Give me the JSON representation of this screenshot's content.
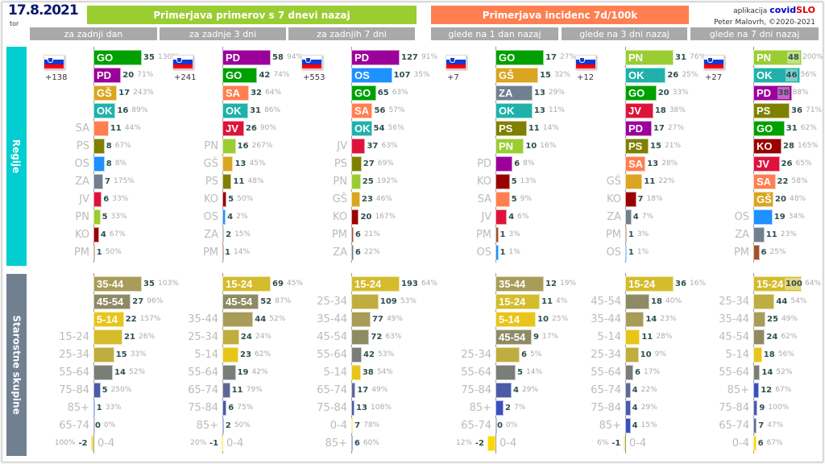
{
  "header": {
    "date": "17.8.2021",
    "weekday": "tor",
    "banner_cases": "Primerjava primerov s 7 dnevi nazaj",
    "banner_incidence": "Primerjava incidenc 7d/100k",
    "sub_cases": [
      "za zadnji dan",
      "za zadnje 3 dni",
      "za zadnjih 7 dni"
    ],
    "sub_incidence": [
      "glede na 1 dan nazaj",
      "glede na 3 dni nazaj",
      "glede na 7 dni nazaj"
    ],
    "credit_prefix": "aplikacija",
    "brand_a": "covid",
    "brand_b": "SLO",
    "author": "Peter Malovrh, ©2020-2021"
  },
  "sections": {
    "regions": "Regije",
    "ages": "Starostne skupine"
  },
  "colors": {
    "banner_cases": "#9acd32",
    "banner_incidence": "#ff7f50",
    "regions_side": "#00ced1",
    "ages_side": "#708090",
    "GO": "#00a000",
    "PD": "#9b009b",
    "GŠ": "#daa520",
    "OK": "#20b2aa",
    "SA": "#ff7f50",
    "PS": "#808000",
    "OS": "#1e90ff",
    "ZA": "#708090",
    "JV": "#dc143c",
    "PN": "#9acd32",
    "KO": "#990000",
    "PM": "#a0522d",
    "0-4": "#ffd700",
    "5-14": "#e8c51a",
    "15-24": "#d4bc2c",
    "25-34": "#bfad40",
    "35-44": "#a89c58",
    "45-54": "#8e8a64",
    "55-64": "#7a7d78",
    "65-74": "#5f6895",
    "75-84": "#4b5aa8",
    "85+": "#3a50c0"
  },
  "chart_data": [
    {
      "type": "bar",
      "section": "Regije",
      "group": "za zadnji dan",
      "flag_delta": "+138",
      "items": [
        {
          "label": "GO",
          "value": 35,
          "pct": "130%"
        },
        {
          "label": "PD",
          "value": 20,
          "pct": "71%"
        },
        {
          "label": "GŠ",
          "value": 17,
          "pct": "243%"
        },
        {
          "label": "OK",
          "value": 16,
          "pct": "89%"
        },
        {
          "label": "SA",
          "value": 11,
          "pct": "44%"
        },
        {
          "label": "PS",
          "value": 8,
          "pct": "67%"
        },
        {
          "label": "OS",
          "value": 8,
          "pct": "8%"
        },
        {
          "label": "ZA",
          "value": 7,
          "pct": "175%"
        },
        {
          "label": "JV",
          "value": 6,
          "pct": "33%"
        },
        {
          "label": "PN",
          "value": 5,
          "pct": "33%"
        },
        {
          "label": "KO",
          "value": 4,
          "pct": "67%"
        },
        {
          "label": "PM",
          "value": 1,
          "pct": "50%"
        }
      ]
    },
    {
      "type": "bar",
      "section": "Regije",
      "group": "za zadnje 3 dni",
      "flag_delta": "+241",
      "items": [
        {
          "label": "PD",
          "value": 58,
          "pct": "94%"
        },
        {
          "label": "GO",
          "value": 42,
          "pct": "74%"
        },
        {
          "label": "SA",
          "value": 32,
          "pct": "64%"
        },
        {
          "label": "OK",
          "value": 31,
          "pct": "86%"
        },
        {
          "label": "JV",
          "value": 26,
          "pct": "90%"
        },
        {
          "label": "PN",
          "value": 16,
          "pct": "267%"
        },
        {
          "label": "GŠ",
          "value": 13,
          "pct": "45%"
        },
        {
          "label": "PS",
          "value": 11,
          "pct": "48%"
        },
        {
          "label": "KO",
          "value": 5,
          "pct": "50%"
        },
        {
          "label": "OS",
          "value": 4,
          "pct": "2%"
        },
        {
          "label": "ZA",
          "value": 2,
          "pct": "15%"
        },
        {
          "label": "PM",
          "value": 1,
          "pct": "14%"
        }
      ]
    },
    {
      "type": "bar",
      "section": "Regije",
      "group": "za zadnjih 7 dni",
      "flag_delta": "+553",
      "items": [
        {
          "label": "PD",
          "value": 127,
          "pct": "91%"
        },
        {
          "label": "OS",
          "value": 107,
          "pct": "35%"
        },
        {
          "label": "GO",
          "value": 65,
          "pct": "63%"
        },
        {
          "label": "SA",
          "value": 56,
          "pct": "57%"
        },
        {
          "label": "OK",
          "value": 54,
          "pct": "56%"
        },
        {
          "label": "JV",
          "value": 37,
          "pct": "63%"
        },
        {
          "label": "PS",
          "value": 27,
          "pct": "69%"
        },
        {
          "label": "PN",
          "value": 25,
          "pct": "192%"
        },
        {
          "label": "GŠ",
          "value": 23,
          "pct": "46%"
        },
        {
          "label": "KO",
          "value": 20,
          "pct": "167%"
        },
        {
          "label": "PM",
          "value": 6,
          "pct": "21%"
        },
        {
          "label": "ZA",
          "value": 6,
          "pct": "22%"
        }
      ]
    },
    {
      "type": "bar",
      "section": "Regije",
      "group": "glede na 1 dan nazaj",
      "flag_delta": "+7",
      "items": [
        {
          "label": "GO",
          "value": 17,
          "pct": "27%"
        },
        {
          "label": "GŠ",
          "value": 15,
          "pct": "32%"
        },
        {
          "label": "ZA",
          "value": 13,
          "pct": "29%"
        },
        {
          "label": "OK",
          "value": 13,
          "pct": "11%"
        },
        {
          "label": "PS",
          "value": 11,
          "pct": "14%"
        },
        {
          "label": "PN",
          "value": 10,
          "pct": "16%"
        },
        {
          "label": "PD",
          "value": 6,
          "pct": "8%"
        },
        {
          "label": "KO",
          "value": 5,
          "pct": "13%"
        },
        {
          "label": "SA",
          "value": 5,
          "pct": "9%"
        },
        {
          "label": "JV",
          "value": 4,
          "pct": "6%"
        },
        {
          "label": "PM",
          "value": 1,
          "pct": "3%"
        },
        {
          "label": "OS",
          "value": 1,
          "pct": "1%"
        }
      ]
    },
    {
      "type": "bar",
      "section": "Regije",
      "group": "glede na 3 dni nazaj",
      "flag_delta": "+12",
      "items": [
        {
          "label": "PN",
          "value": 31,
          "pct": "76%"
        },
        {
          "label": "OK",
          "value": 26,
          "pct": "25%"
        },
        {
          "label": "GO",
          "value": 20,
          "pct": "33%"
        },
        {
          "label": "JV",
          "value": 18,
          "pct": "38%"
        },
        {
          "label": "PD",
          "value": 17,
          "pct": "27%"
        },
        {
          "label": "PS",
          "value": 15,
          "pct": "21%"
        },
        {
          "label": "SA",
          "value": 13,
          "pct": "28%"
        },
        {
          "label": "GŠ",
          "value": 11,
          "pct": "22%"
        },
        {
          "label": "KO",
          "value": 7,
          "pct": "18%"
        },
        {
          "label": "ZA",
          "value": 4,
          "pct": "7%"
        },
        {
          "label": "PM",
          "value": 1,
          "pct": "3%"
        },
        {
          "label": "OS",
          "value": 1,
          "pct": "1%"
        }
      ]
    },
    {
      "type": "bar",
      "section": "Regije",
      "group": "glede na 7 dni nazaj",
      "flag_delta": "+27",
      "items": [
        {
          "label": "PN",
          "value": 48,
          "pct": "200%"
        },
        {
          "label": "OK",
          "value": 46,
          "pct": "56%"
        },
        {
          "label": "PD",
          "value": 38,
          "pct": "88%"
        },
        {
          "label": "PS",
          "value": 36,
          "pct": "71%"
        },
        {
          "label": "GO",
          "value": 31,
          "pct": "62%"
        },
        {
          "label": "KO",
          "value": 28,
          "pct": "165%"
        },
        {
          "label": "JV",
          "value": 26,
          "pct": "65%"
        },
        {
          "label": "SA",
          "value": 22,
          "pct": "58%"
        },
        {
          "label": "GŠ",
          "value": 20,
          "pct": "48%"
        },
        {
          "label": "OS",
          "value": 19,
          "pct": "34%"
        },
        {
          "label": "ZA",
          "value": 11,
          "pct": "23%"
        },
        {
          "label": "PM",
          "value": 6,
          "pct": "25%"
        }
      ]
    },
    {
      "type": "bar",
      "section": "Starostne skupine",
      "group": "za zadnji dan",
      "items": [
        {
          "label": "35-44",
          "value": 35,
          "pct": "103%"
        },
        {
          "label": "45-54",
          "value": 27,
          "pct": "96%"
        },
        {
          "label": "5-14",
          "value": 22,
          "pct": "157%"
        },
        {
          "label": "15-24",
          "value": 21,
          "pct": "26%"
        },
        {
          "label": "25-34",
          "value": 15,
          "pct": "33%"
        },
        {
          "label": "55-64",
          "value": 14,
          "pct": "52%"
        },
        {
          "label": "75-84",
          "value": 5,
          "pct": "250%"
        },
        {
          "label": "85+",
          "value": 1,
          "pct": "33%"
        },
        {
          "label": "65-74",
          "value": 0,
          "pct": "0%"
        },
        {
          "label": "0-4",
          "value": -2,
          "pct": "100%"
        }
      ]
    },
    {
      "type": "bar",
      "section": "Starostne skupine",
      "group": "za zadnje 3 dni",
      "items": [
        {
          "label": "15-24",
          "value": 69,
          "pct": "45%"
        },
        {
          "label": "45-54",
          "value": 52,
          "pct": "87%"
        },
        {
          "label": "35-44",
          "value": 44,
          "pct": "52%"
        },
        {
          "label": "25-34",
          "value": 24,
          "pct": "24%"
        },
        {
          "label": "5-14",
          "value": 23,
          "pct": "62%"
        },
        {
          "label": "55-64",
          "value": 19,
          "pct": "42%"
        },
        {
          "label": "65-74",
          "value": 11,
          "pct": "79%"
        },
        {
          "label": "75-84",
          "value": 6,
          "pct": "75%"
        },
        {
          "label": "85+",
          "value": 2,
          "pct": "50%"
        },
        {
          "label": "0-4",
          "value": -1,
          "pct": "20%"
        }
      ]
    },
    {
      "type": "bar",
      "section": "Starostne skupine",
      "group": "za zadnjih 7 dni",
      "items": [
        {
          "label": "15-24",
          "value": 193,
          "pct": "64%"
        },
        {
          "label": "25-34",
          "value": 109,
          "pct": "53%"
        },
        {
          "label": "35-44",
          "value": 77,
          "pct": "49%"
        },
        {
          "label": "45-54",
          "value": 72,
          "pct": "63%"
        },
        {
          "label": "55-64",
          "value": 42,
          "pct": "53%"
        },
        {
          "label": "5-14",
          "value": 38,
          "pct": "54%"
        },
        {
          "label": "65-74",
          "value": 17,
          "pct": "49%"
        },
        {
          "label": "75-84",
          "value": 13,
          "pct": "108%"
        },
        {
          "label": "0-4",
          "value": 7,
          "pct": "78%"
        },
        {
          "label": "85+",
          "value": 6,
          "pct": "60%"
        }
      ]
    },
    {
      "type": "bar",
      "section": "Starostne skupine",
      "group": "glede na 1 dan nazaj",
      "items": [
        {
          "label": "35-44",
          "value": 12,
          "pct": "19%"
        },
        {
          "label": "15-24",
          "value": 11,
          "pct": "4%"
        },
        {
          "label": "5-14",
          "value": 10,
          "pct": "25%"
        },
        {
          "label": "45-54",
          "value": 9,
          "pct": "17%"
        },
        {
          "label": "25-34",
          "value": 6,
          "pct": "5%"
        },
        {
          "label": "55-64",
          "value": 5,
          "pct": "14%"
        },
        {
          "label": "75-84",
          "value": 4,
          "pct": "29%"
        },
        {
          "label": "85+",
          "value": 2,
          "pct": "7%"
        },
        {
          "label": "65-74",
          "value": 0,
          "pct": "0%"
        },
        {
          "label": "0-4",
          "value": -2,
          "pct": "12%"
        }
      ]
    },
    {
      "type": "bar",
      "section": "Starostne skupine",
      "group": "glede na 3 dni nazaj",
      "items": [
        {
          "label": "15-24",
          "value": 36,
          "pct": "16%"
        },
        {
          "label": "45-54",
          "value": 18,
          "pct": "40%"
        },
        {
          "label": "35-44",
          "value": 14,
          "pct": "23%"
        },
        {
          "label": "5-14",
          "value": 11,
          "pct": "28%"
        },
        {
          "label": "25-34",
          "value": 10,
          "pct": "9%"
        },
        {
          "label": "55-64",
          "value": 6,
          "pct": "17%"
        },
        {
          "label": "65-74",
          "value": 4,
          "pct": "22%"
        },
        {
          "label": "75-84",
          "value": 4,
          "pct": "29%"
        },
        {
          "label": "85+",
          "value": 4,
          "pct": "15%"
        },
        {
          "label": "0-4",
          "value": -1,
          "pct": "6%"
        }
      ]
    },
    {
      "type": "bar",
      "section": "Starostne skupine",
      "group": "glede na 7 dni nazaj",
      "items": [
        {
          "label": "15-24",
          "value": 100,
          "pct": "64%"
        },
        {
          "label": "25-34",
          "value": 44,
          "pct": "54%"
        },
        {
          "label": "35-44",
          "value": 25,
          "pct": "49%"
        },
        {
          "label": "45-54",
          "value": 24,
          "pct": "62%"
        },
        {
          "label": "5-14",
          "value": 18,
          "pct": "56%"
        },
        {
          "label": "55-64",
          "value": 14,
          "pct": "52%"
        },
        {
          "label": "85+",
          "value": 12,
          "pct": "67%"
        },
        {
          "label": "75-84",
          "value": 9,
          "pct": "100%"
        },
        {
          "label": "65-74",
          "value": 7,
          "pct": "47%"
        },
        {
          "label": "0-4",
          "value": 6,
          "pct": "67%"
        }
      ]
    }
  ]
}
